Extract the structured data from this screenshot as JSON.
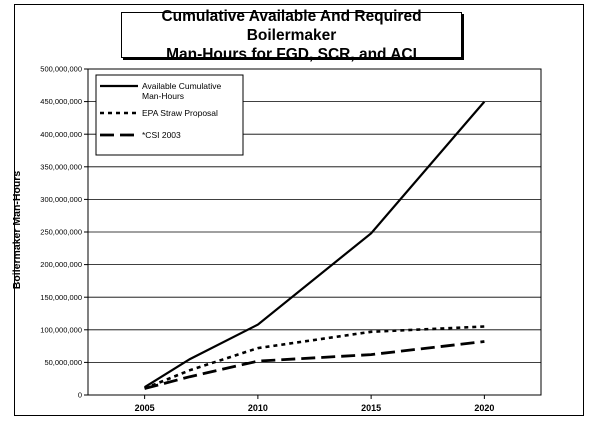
{
  "chart_data": {
    "type": "line",
    "title": "Cumulative Available And Required Boilermaker\nMan-Hours for FGD, SCR, and ACI",
    "xlabel": "",
    "ylabel": "Boilermaker Man-Hours",
    "x": [
      2005,
      2007,
      2010,
      2015,
      2020
    ],
    "xticks": [
      "2005",
      "2010",
      "2015",
      "2020"
    ],
    "yticks": [
      "0",
      "50,000,000",
      "100,000,000",
      "150,000,000",
      "200,000,000",
      "250,000,000",
      "300,000,000",
      "350,000,000",
      "400,000,000",
      "450,000,000",
      "500,000,000"
    ],
    "xlim": [
      2002.5,
      2022.5
    ],
    "ylim": [
      0,
      500000000
    ],
    "grid": "horizontal",
    "legend_position": "top-left",
    "series": [
      {
        "name": "Available Cumulative Man-Hours",
        "style": "solid",
        "points": [
          [
            2005,
            12000000
          ],
          [
            2007,
            55000000
          ],
          [
            2010,
            108000000
          ],
          [
            2015,
            248000000
          ],
          [
            2020,
            450000000
          ]
        ]
      },
      {
        "name": "EPA Straw Proposal",
        "style": "dotted",
        "points": [
          [
            2005,
            10000000
          ],
          [
            2007,
            38000000
          ],
          [
            2010,
            72000000
          ],
          [
            2015,
            97000000
          ],
          [
            2020,
            105000000
          ]
        ]
      },
      {
        "name": "*CSI 2003",
        "style": "dashed",
        "points": [
          [
            2005,
            10000000
          ],
          [
            2007,
            28000000
          ],
          [
            2010,
            52000000
          ],
          [
            2015,
            62000000
          ],
          [
            2020,
            82000000
          ]
        ]
      }
    ]
  }
}
